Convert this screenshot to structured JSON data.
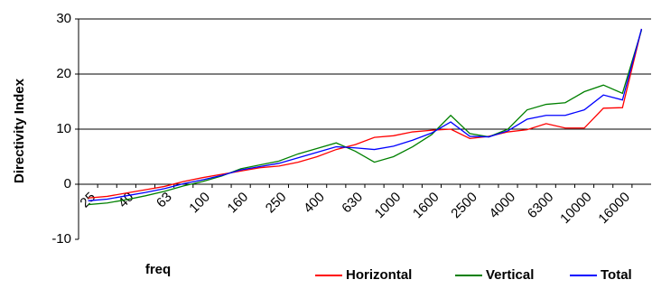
{
  "chart_data": {
    "type": "line",
    "y_label": "Directivity Index",
    "x_label": "freq",
    "categories": [
      "25",
      null,
      "40",
      null,
      "63",
      null,
      "100",
      null,
      "160",
      null,
      "250",
      null,
      "400",
      null,
      "630",
      null,
      "1000",
      null,
      "1600",
      null,
      "2500",
      null,
      "4000",
      null,
      "6300",
      null,
      "10000",
      null,
      "16000",
      null
    ],
    "series": [
      {
        "name": "Horizontal",
        "color": "#ff0000",
        "values": [
          -2.5,
          -2.2,
          -1.6,
          -1.0,
          -0.4,
          0.5,
          1.2,
          1.8,
          2.4,
          3.0,
          3.3,
          4.0,
          5.0,
          6.3,
          7.2,
          8.5,
          8.8,
          9.5,
          9.8,
          10.0,
          8.3,
          8.7,
          9.5,
          9.9,
          11.0,
          10.2,
          10.2,
          13.8,
          13.9,
          28.2
        ]
      },
      {
        "name": "Vertical",
        "color": "#008000",
        "values": [
          -3.7,
          -3.4,
          -2.8,
          -2.1,
          -1.3,
          -0.3,
          0.5,
          1.5,
          2.8,
          3.5,
          4.2,
          5.5,
          6.5,
          7.5,
          6.0,
          4.0,
          5.0,
          6.8,
          9.0,
          12.5,
          9.2,
          8.6,
          10.0,
          13.5,
          14.5,
          14.8,
          16.8,
          18.0,
          16.5,
          28.0
        ]
      },
      {
        "name": "Total",
        "color": "#0000ff",
        "values": [
          -3.0,
          -2.7,
          -2.1,
          -1.5,
          -0.8,
          0.1,
          0.8,
          1.6,
          2.6,
          3.2,
          3.8,
          4.8,
          5.8,
          6.8,
          6.6,
          6.3,
          6.9,
          8.0,
          9.3,
          11.3,
          8.7,
          8.6,
          9.7,
          11.8,
          12.5,
          12.5,
          13.5,
          16.2,
          15.3,
          28.2
        ]
      }
    ],
    "ylim": [
      -10,
      30
    ],
    "yticks": [
      -10,
      0,
      10,
      20,
      30
    ],
    "grid": true,
    "legend": "bottom-right"
  }
}
